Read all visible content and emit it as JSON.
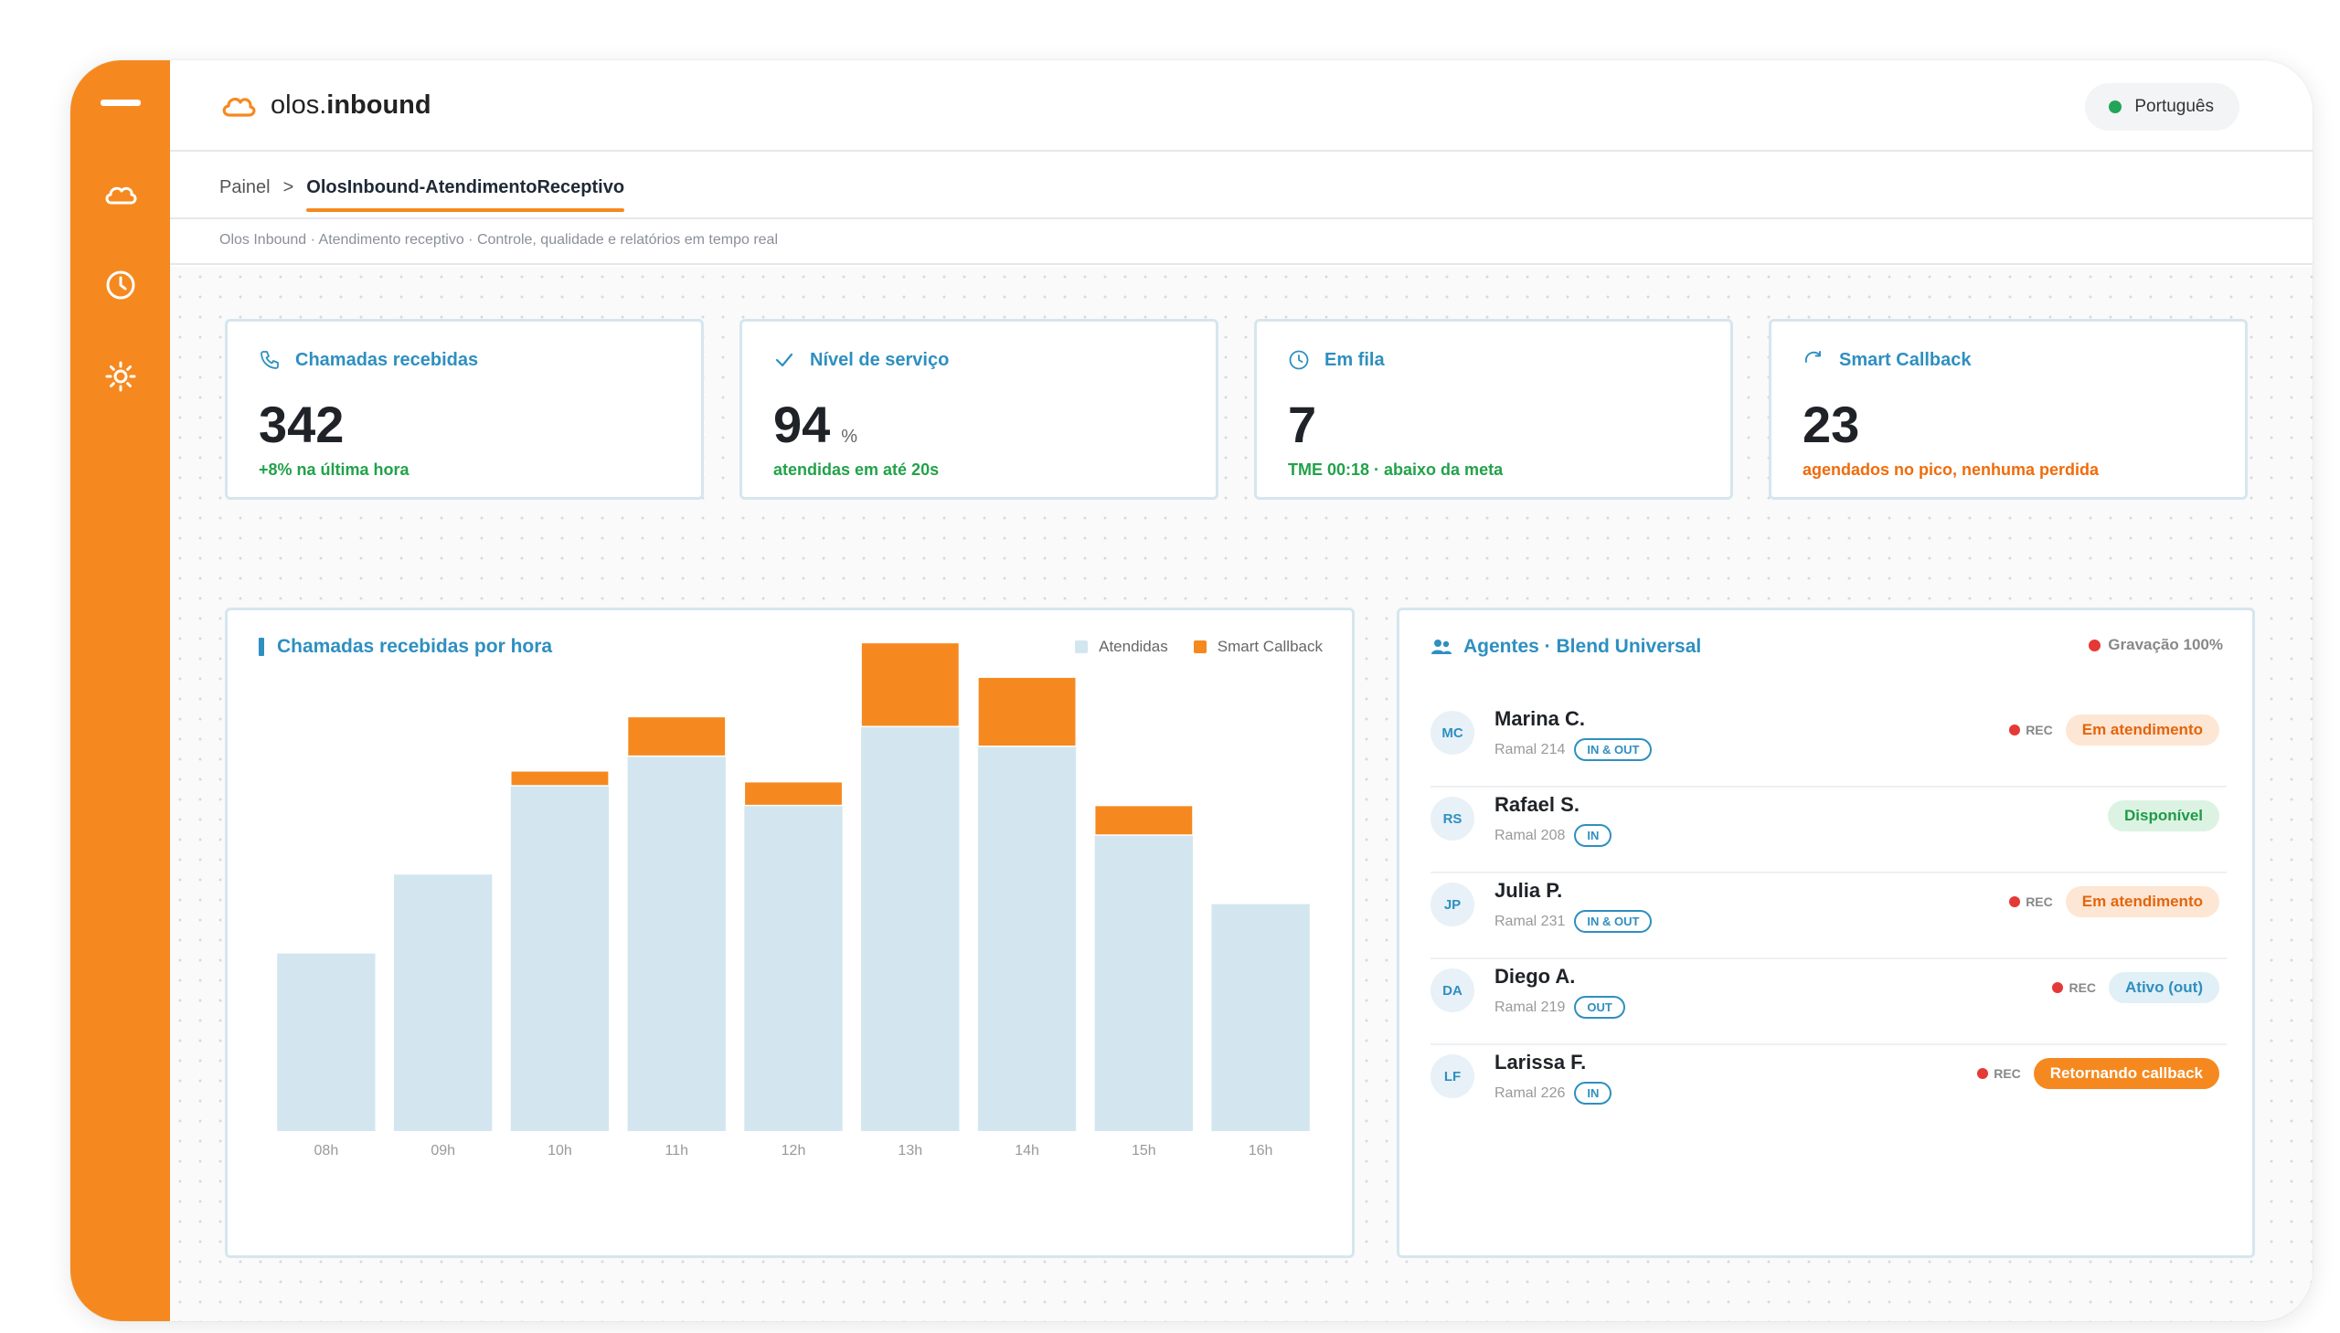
{
  "app": {
    "logo_prefix": "olos.",
    "logo_bold": "inbound",
    "language": "Português"
  },
  "sidebar": {
    "items": [
      {
        "name": "menu-icon"
      },
      {
        "name": "cloud-icon"
      },
      {
        "name": "clock-icon"
      },
      {
        "name": "sun-icon"
      }
    ]
  },
  "breadcrumb": {
    "root": "Painel",
    "separator": ">",
    "current": "OlosInbound-AtendimentoReceptivo"
  },
  "subtitle": "Olos Inbound · Atendimento receptivo · Controle, qualidade e relatórios em tempo real",
  "stats": [
    {
      "icon": "phone-icon",
      "title": "Chamadas recebidas",
      "value": "342",
      "unit": "",
      "note": "+8% na última hora",
      "note_color": "#22a24a"
    },
    {
      "icon": "check-icon",
      "title": "Nível de serviço",
      "value": "94",
      "unit": "%",
      "note": "atendidas em até 20s",
      "note_color": "#22a24a"
    },
    {
      "icon": "clock-icon",
      "title": "Em fila",
      "value": "7",
      "unit": "",
      "note": "TME 00:18 · abaixo da meta",
      "note_color": "#22a24a"
    },
    {
      "icon": "refresh-icon",
      "title": "Smart Callback",
      "value": "23",
      "unit": "",
      "note": "agendados no pico, nenhuma perdida",
      "note_color": "#ef6c0c"
    }
  ],
  "chart_title": "Chamadas recebidas por hora",
  "chart_data": {
    "type": "bar",
    "stacked": true,
    "categories": [
      "08h",
      "09h",
      "10h",
      "11h",
      "12h",
      "13h",
      "14h",
      "15h",
      "16h"
    ],
    "series": [
      {
        "name": "Atendidas",
        "color": "#d3e6ef",
        "values": [
          18,
          26,
          35,
          38,
          33,
          41,
          39,
          30,
          23
        ]
      },
      {
        "name": "Smart Callback",
        "color": "#f5891f",
        "values": [
          0,
          0,
          1.5,
          4,
          2.4,
          8.5,
          7,
          3,
          0
        ]
      }
    ],
    "ylim": [
      0,
      50
    ],
    "legend": "top-right",
    "grid": false
  },
  "agents": {
    "title": "Agentes · Blend Universal",
    "recording": "Gravação 100%",
    "rec_label": "REC",
    "items": [
      {
        "initials": "MC",
        "name": "Marina C.",
        "ext": "Ramal 214",
        "mode": "IN & OUT",
        "rec": true,
        "status": "Em atendimento",
        "status_class": "st-busy"
      },
      {
        "initials": "RS",
        "name": "Rafael S.",
        "ext": "Ramal 208",
        "mode": "IN",
        "rec": false,
        "status": "Disponível",
        "status_class": "st-avail"
      },
      {
        "initials": "JP",
        "name": "Julia P.",
        "ext": "Ramal 231",
        "mode": "IN & OUT",
        "rec": true,
        "status": "Em atendimento",
        "status_class": "st-busy"
      },
      {
        "initials": "DA",
        "name": "Diego A.",
        "ext": "Ramal 219",
        "mode": "OUT",
        "rec": true,
        "status": "Ativo (out)",
        "status_class": "st-out"
      },
      {
        "initials": "LF",
        "name": "Larissa F.",
        "ext": "Ramal 226",
        "mode": "IN",
        "rec": true,
        "status": "Retornando callback",
        "status_class": "st-callback"
      }
    ]
  }
}
